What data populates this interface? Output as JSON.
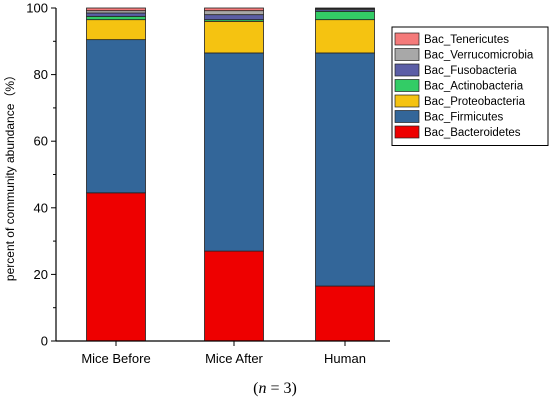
{
  "chart_data": {
    "type": "bar",
    "stacked": true,
    "categories": [
      "Mice Before",
      "Mice After",
      "Human"
    ],
    "ylabel": "percent of community abundance（%）",
    "xlabel": "",
    "ylim": [
      0,
      100
    ],
    "yticks": [
      0,
      20,
      40,
      60,
      80,
      100
    ],
    "grid": false,
    "legend_position": "top-right",
    "series": [
      {
        "name": "Bac_Bacteroidetes",
        "color": "#ee0000",
        "values": [
          44.5,
          27.0,
          16.5
        ]
      },
      {
        "name": "Bac_Firmicutes",
        "color": "#336699",
        "values": [
          46.0,
          59.5,
          70.0
        ]
      },
      {
        "name": "Bac_Proteobacteria",
        "color": "#f5c311",
        "values": [
          6.0,
          9.5,
          10.0
        ]
      },
      {
        "name": "Bac_Actinobacteria",
        "color": "#33cc66",
        "values": [
          1.0,
          0.5,
          2.5
        ]
      },
      {
        "name": "Bac_Fusobacteria",
        "color": "#5b5ea6",
        "values": [
          1.0,
          1.5,
          0.5
        ]
      },
      {
        "name": "Bac_Verrucomicrobia",
        "color": "#a8a8a8",
        "values": [
          0.7,
          1.2,
          0.3
        ]
      },
      {
        "name": "Bac_Tenericutes",
        "color": "#f47a7a",
        "values": [
          0.8,
          0.8,
          0.2
        ]
      }
    ]
  },
  "caption": {
    "variable": "n",
    "rest": " = 3)",
    "open": "("
  }
}
